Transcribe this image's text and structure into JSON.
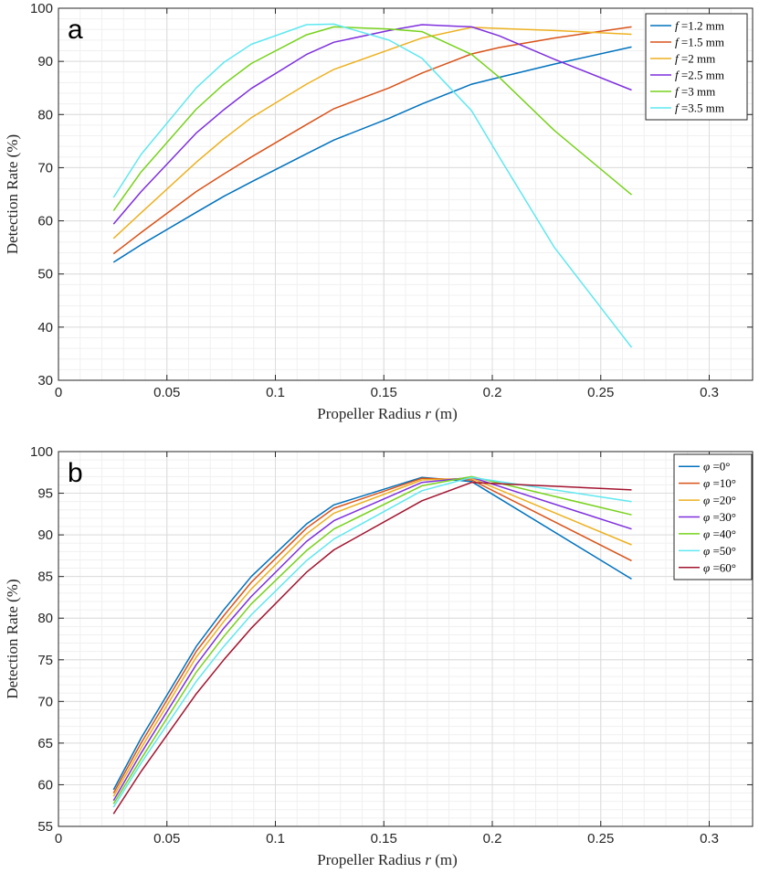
{
  "chart_data": [
    {
      "type": "line",
      "panel_label": "a",
      "xlabel": "Propeller Radius r (m)",
      "xlabel_parts": {
        "pre": "Propeller Radius ",
        "var": "r",
        "post": " (m)"
      },
      "ylabel": "Detection Rate (%)",
      "xlim": [
        0,
        0.32
      ],
      "ylim": [
        30,
        100
      ],
      "xticks": [
        0,
        0.05,
        0.1,
        0.15,
        0.2,
        0.25,
        0.3
      ],
      "xtick_labels": [
        "0",
        "0.05",
        "0.1",
        "0.15",
        "0.2",
        "0.25",
        "0.3"
      ],
      "yticks": [
        30,
        40,
        50,
        60,
        70,
        80,
        90,
        100
      ],
      "ytick_labels": [
        "30",
        "40",
        "50",
        "60",
        "70",
        "80",
        "90",
        "100"
      ],
      "grid": true,
      "legend_position": "top-right",
      "legend_var": "f",
      "x": [
        0.0254,
        0.0381,
        0.0635,
        0.0762,
        0.0889,
        0.1143,
        0.127,
        0.1524,
        0.1676,
        0.1905,
        0.2032,
        0.2286,
        0.2642
      ],
      "series": [
        {
          "name": "f =1.2 mm",
          "name_parts": {
            "var": "f",
            "rest": " =1.2 mm"
          },
          "color": "#0072BD",
          "values": [
            52.2,
            55.5,
            61.6,
            64.6,
            67.3,
            72.6,
            75.2,
            79.3,
            82.0,
            85.7,
            87.0,
            89.5,
            92.7
          ]
        },
        {
          "name": "f =1.5 mm",
          "name_parts": {
            "var": "f",
            "rest": " =1.5 mm"
          },
          "color": "#D95319",
          "values": [
            53.8,
            57.8,
            65.5,
            68.8,
            72.0,
            78.1,
            81.1,
            85.0,
            87.8,
            91.4,
            92.6,
            94.4,
            96.5
          ]
        },
        {
          "name": "f =2 mm",
          "name_parts": {
            "var": "f",
            "rest": " =2 mm"
          },
          "color": "#EDB120",
          "values": [
            56.7,
            61.5,
            71.0,
            75.4,
            79.4,
            85.7,
            88.5,
            92.2,
            94.4,
            96.4,
            96.2,
            95.8,
            95.1
          ]
        },
        {
          "name": "f =2.5 mm",
          "name_parts": {
            "var": "f",
            "rest": " =2.5 mm"
          },
          "color": "#7E2FDE",
          "values": [
            59.4,
            65.5,
            76.5,
            80.9,
            84.9,
            91.3,
            93.6,
            95.8,
            96.9,
            96.5,
            94.8,
            90.4,
            84.6
          ]
        },
        {
          "name": "f =3 mm",
          "name_parts": {
            "var": "f",
            "rest": " =3 mm"
          },
          "color": "#77D21B",
          "values": [
            61.9,
            69.2,
            81.0,
            85.7,
            89.6,
            95.0,
            96.5,
            96.1,
            95.6,
            91.3,
            87.0,
            77.0,
            64.9
          ]
        },
        {
          "name": "f =3.5 mm",
          "name_parts": {
            "var": "f",
            "rest": " =3.5 mm"
          },
          "color": "#5FE8F0",
          "values": [
            64.4,
            72.5,
            85.0,
            89.8,
            93.2,
            96.9,
            97.0,
            94.0,
            90.6,
            80.7,
            72.0,
            55.0,
            36.2
          ]
        }
      ]
    },
    {
      "type": "line",
      "panel_label": "b",
      "xlabel": "Propeller Radius r (m)",
      "xlabel_parts": {
        "pre": "Propeller Radius ",
        "var": "r",
        "post": " (m)"
      },
      "ylabel": "Detection Rate (%)",
      "xlim": [
        0,
        0.32
      ],
      "ylim": [
        55,
        100
      ],
      "xticks": [
        0,
        0.05,
        0.1,
        0.15,
        0.2,
        0.25,
        0.3
      ],
      "xtick_labels": [
        "0",
        "0.05",
        "0.1",
        "0.15",
        "0.2",
        "0.25",
        "0.3"
      ],
      "yticks": [
        55,
        60,
        65,
        70,
        75,
        80,
        85,
        90,
        95,
        100
      ],
      "ytick_labels": [
        "55",
        "60",
        "65",
        "70",
        "75",
        "80",
        "85",
        "90",
        "95",
        "100"
      ],
      "grid": true,
      "legend_position": "top-right",
      "legend_var": "φ",
      "x": [
        0.0254,
        0.0381,
        0.0635,
        0.0762,
        0.0889,
        0.1143,
        0.127,
        0.1676,
        0.1905,
        0.2642
      ],
      "series": [
        {
          "name": "φ =0°",
          "name_parts": {
            "var": "φ",
            "rest": " =0°"
          },
          "color": "#0072BD",
          "values": [
            59.4,
            65.6,
            76.6,
            81.0,
            85.0,
            91.3,
            93.6,
            96.9,
            96.4,
            84.7
          ]
        },
        {
          "name": "φ =10°",
          "name_parts": {
            "var": "φ",
            "rest": " =10°"
          },
          "color": "#D95319",
          "values": [
            59.0,
            65.0,
            76.0,
            80.3,
            84.3,
            90.8,
            93.2,
            96.8,
            96.6,
            86.9
          ]
        },
        {
          "name": "φ =20°",
          "name_parts": {
            "var": "φ",
            "rest": " =20°"
          },
          "color": "#EDB120",
          "values": [
            58.6,
            64.4,
            75.3,
            79.6,
            83.5,
            90.1,
            92.6,
            96.6,
            96.8,
            88.8
          ]
        },
        {
          "name": "φ =30°",
          "name_parts": {
            "var": "φ",
            "rest": " =30°"
          },
          "color": "#7E2FDE",
          "values": [
            58.1,
            63.8,
            74.4,
            78.8,
            82.6,
            89.2,
            91.7,
            96.3,
            96.9,
            90.7
          ]
        },
        {
          "name": "φ =40°",
          "name_parts": {
            "var": "φ",
            "rest": " =40°"
          },
          "color": "#77D21B",
          "values": [
            57.7,
            63.1,
            73.5,
            77.8,
            81.7,
            88.1,
            90.7,
            95.9,
            97.0,
            92.4
          ]
        },
        {
          "name": "φ =50°",
          "name_parts": {
            "var": "φ",
            "rest": " =50°"
          },
          "color": "#5FE8F0",
          "values": [
            57.3,
            62.6,
            72.4,
            76.6,
            80.4,
            86.9,
            89.5,
            95.3,
            96.9,
            94.0
          ]
        },
        {
          "name": "φ =60°",
          "name_parts": {
            "var": "φ",
            "rest": " =60°"
          },
          "color": "#A2142F",
          "values": [
            56.5,
            61.6,
            70.9,
            75.0,
            78.8,
            85.5,
            88.2,
            94.1,
            96.3,
            95.4
          ]
        }
      ]
    }
  ]
}
